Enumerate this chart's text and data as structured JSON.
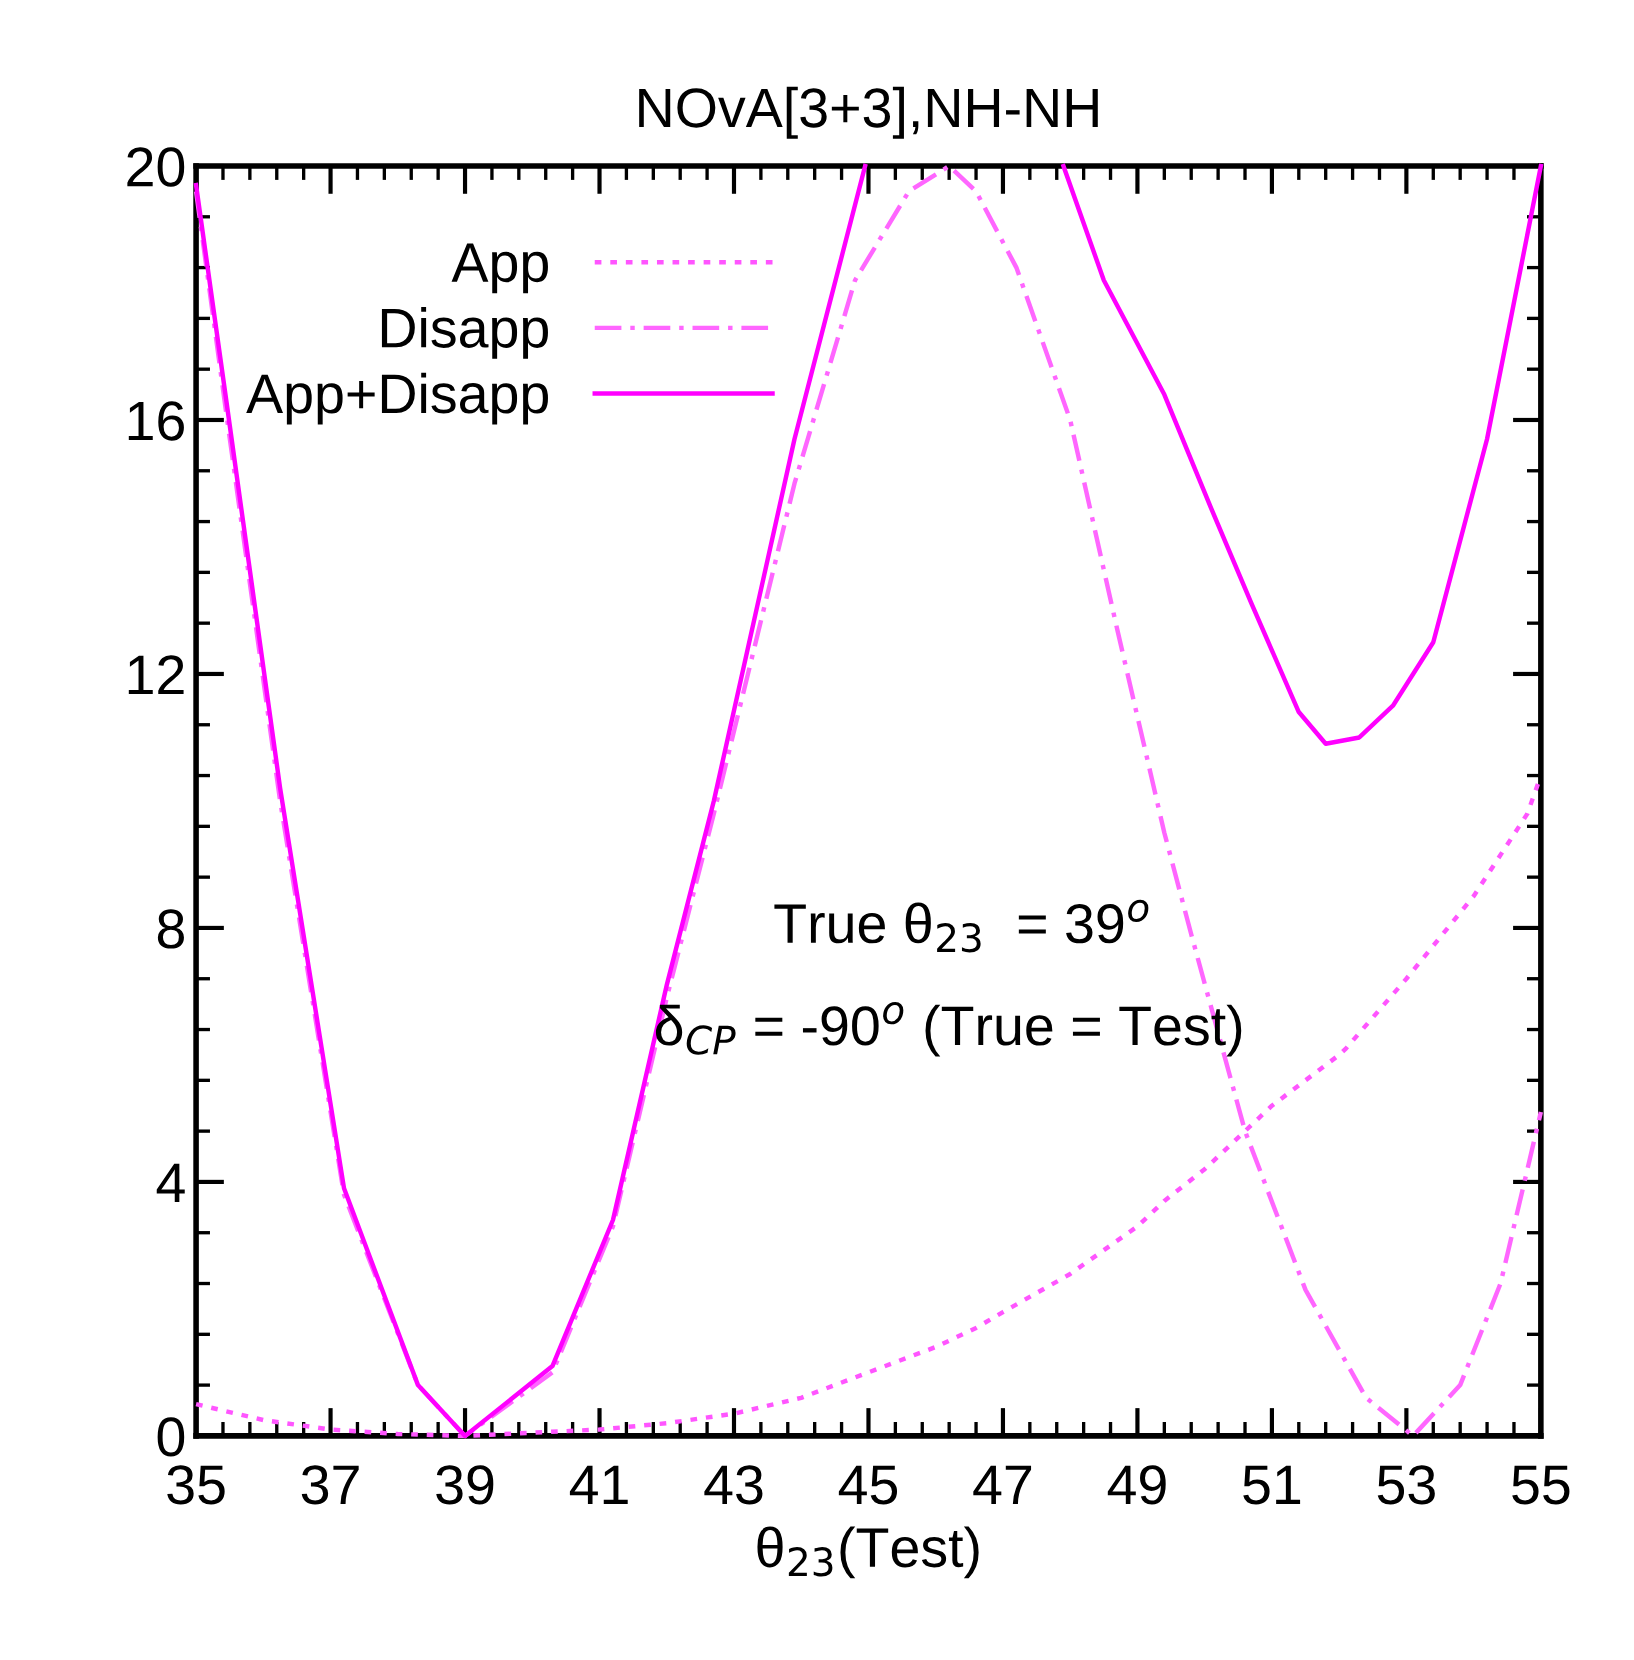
{
  "chart_data": {
    "type": "line",
    "title": "NOvA[3+3],NH-NH",
    "xlabel": "θ$_{23}$(Test)",
    "xlim": [
      35,
      55
    ],
    "xticks": [
      35,
      37,
      39,
      41,
      43,
      45,
      47,
      49,
      51,
      53,
      55
    ],
    "ylim": [
      0,
      20
    ],
    "yticks": [
      0,
      4,
      8,
      12,
      16,
      20
    ],
    "grid": false,
    "legend": "top left",
    "marker": "none",
    "annotations": [
      "True θ$_{23}$  = 39$^{o}$",
      "δ$_{CP}$ = -90$^{o}$ (True = Test)"
    ],
    "series": [
      {
        "name": "App",
        "color": "#ff55ff",
        "line_style": "dotted",
        "x": [
          35,
          36,
          37,
          38,
          39,
          40,
          41,
          42,
          43,
          44,
          45,
          46,
          46.6,
          47,
          48,
          49,
          49.4,
          50,
          50.6,
          51,
          52,
          52.1,
          53,
          54,
          54.8,
          55
        ],
        "values": [
          0.5,
          0.25,
          0.1,
          0.03,
          0,
          0.05,
          0.1,
          0.2,
          0.35,
          0.6,
          1.0,
          1.4,
          1.7,
          1.95,
          2.55,
          3.3,
          3.7,
          4.2,
          4.8,
          5.2,
          6.0,
          6.1,
          7.2,
          8.5,
          9.8,
          10.4
        ]
      },
      {
        "name": "Disapp",
        "color": "#ff66ff",
        "line_style": "dashed",
        "x": [
          35,
          35.45,
          36.25,
          37.2,
          38.3,
          39,
          40.3,
          41.2,
          42,
          42.7,
          43.9,
          44.8,
          45.6,
          46.2,
          46.6,
          47.2,
          48,
          48.7,
          49.4,
          49.8,
          50.6,
          51.5,
          52.4,
          53.1,
          53.8,
          54.4,
          55
        ],
        "values": [
          19.6,
          16.1,
          10.0,
          3.8,
          0.8,
          0,
          1.0,
          3.3,
          6.9,
          9.8,
          15.0,
          18.2,
          19.6,
          20.0,
          19.6,
          18.4,
          16.0,
          12.7,
          9.5,
          7.9,
          4.8,
          2.3,
          0.6,
          0,
          0.8,
          2.4,
          5.1
        ]
      },
      {
        "name": "App+Disapp",
        "color": "#ff00ff",
        "line_style": "solid",
        "x": [
          35,
          35.45,
          36.25,
          37.2,
          38.3,
          39,
          40.3,
          41.2,
          42,
          42.7,
          43.9,
          44.95,
          null,
          47.9,
          48.5,
          49.4,
          50.1,
          50.7,
          51.4,
          51.8,
          52.3,
          52.8,
          53.4,
          54.2,
          55
        ],
        "values": [
          19.7,
          16.3,
          10.2,
          3.9,
          0.8,
          0,
          1.1,
          3.4,
          7.1,
          10.0,
          15.7,
          20.0,
          null,
          20.0,
          18.2,
          16.4,
          14.6,
          13.1,
          11.4,
          10.9,
          11.0,
          11.5,
          12.5,
          15.7,
          20.0
        ]
      }
    ]
  }
}
